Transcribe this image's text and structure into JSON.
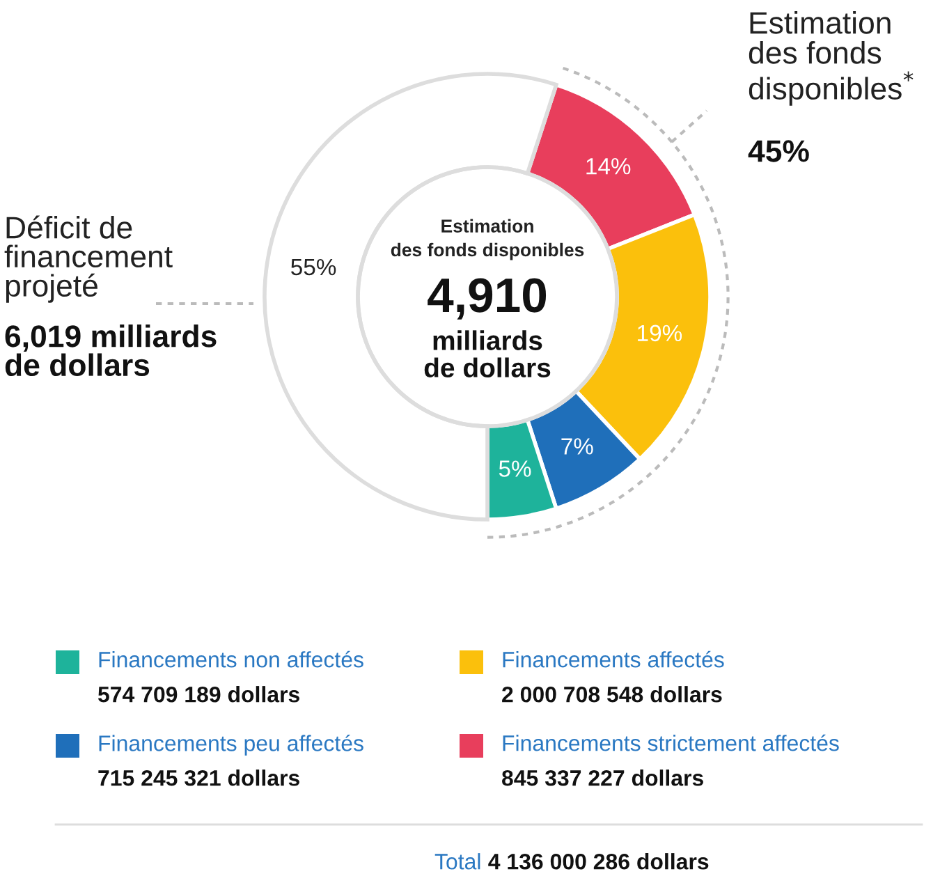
{
  "chart_data": {
    "type": "donut",
    "categories": [
      "Financements strictement affectés",
      "Financements affectés",
      "Financements peu affectés",
      "Financements non affectés",
      "Déficit de financement projeté"
    ],
    "values": [
      14,
      19,
      7,
      5,
      55
    ],
    "colors": [
      "#e83e5c",
      "#fbc00c",
      "#1f6fba",
      "#1eb39b",
      "#ffffff"
    ],
    "value_labels": [
      "14%",
      "19%",
      "7%",
      "5%",
      "55%"
    ],
    "legend": "bottom",
    "annotations": [
      "845 337 227 dollars",
      "2 000 708 548 dollars",
      "715 245 321 dollars",
      "574 709 189 dollars",
      "Estimation\ndes fonds disponibles",
      "4,910",
      "milliards\nde dollars",
      "6,019 milliards\nde dollars",
      "Estimation\ndes fonds\ndisponibles$^{*}$",
      "45%",
      "Total",
      "4 136 000 286 dollars"
    ]
  }
}
